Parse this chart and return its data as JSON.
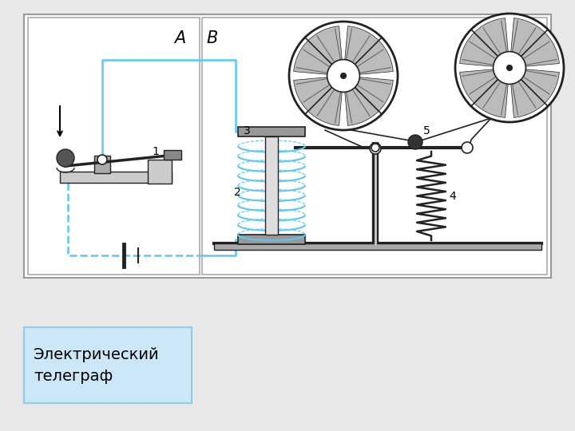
{
  "bg_color": "#e8e8e8",
  "diagram_bg": "#ffffff",
  "line_color": "#222222",
  "circuit_color": "#5bc8f5",
  "label_A": "A",
  "label_B": "B",
  "text_box_text": "Электрический\nтелеграф",
  "text_box_bg": "#cce8f8",
  "text_box_border": "#8bcfec",
  "label1": "1",
  "label2": "2",
  "label3": "3",
  "label4": "4",
  "label5": "5"
}
